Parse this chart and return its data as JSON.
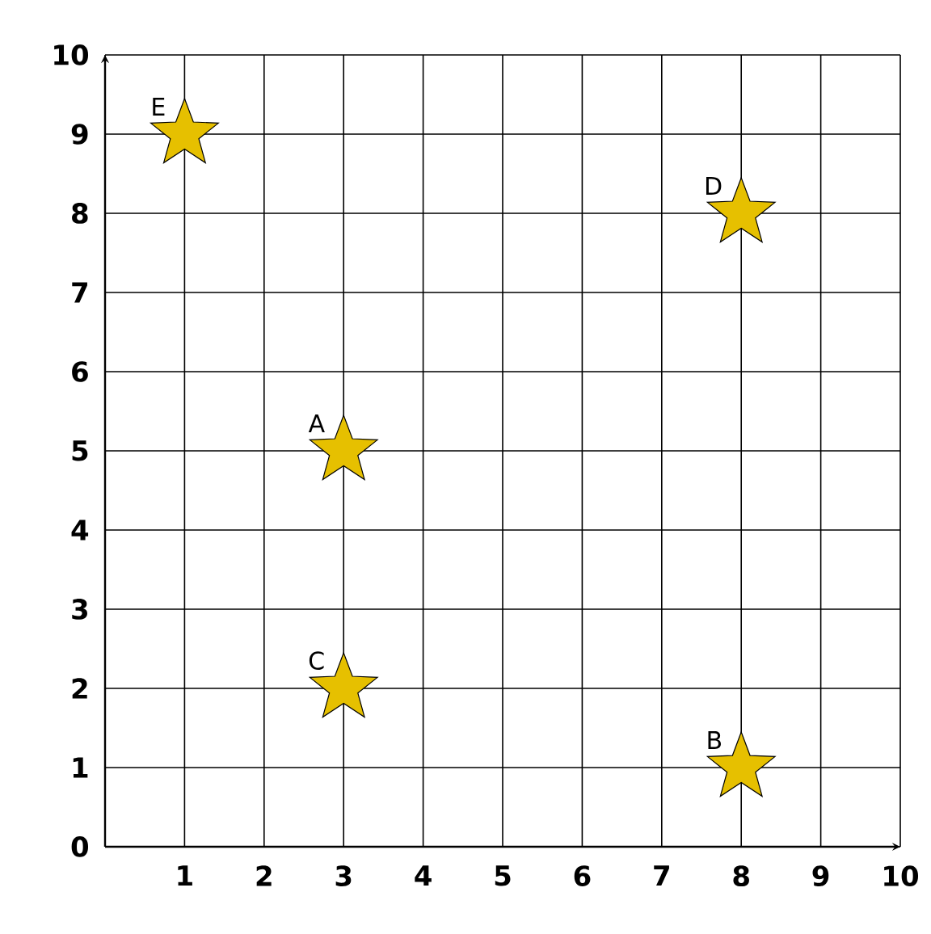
{
  "chart_data": {
    "type": "scatter",
    "marker": "star",
    "grid": true,
    "series": [
      {
        "color": "#e6c000",
        "x": [
          3,
          8,
          3,
          8,
          1
        ],
        "values": [
          5,
          1,
          2,
          8,
          9
        ]
      }
    ],
    "annotations": [
      {
        "text": "A",
        "x": 3,
        "y": 5
      },
      {
        "text": "B",
        "x": 8,
        "y": 1
      },
      {
        "text": "C",
        "x": 3,
        "y": 2
      },
      {
        "text": "D",
        "x": 8,
        "y": 8
      },
      {
        "text": "E",
        "x": 1,
        "y": 9
      }
    ],
    "xlim": [
      0,
      10
    ],
    "ylim": [
      0,
      10
    ],
    "xticks": [
      {
        "value": 0,
        "label": null
      },
      1,
      2,
      3,
      4,
      5,
      6,
      7,
      8,
      9,
      10
    ],
    "yticks": [
      0,
      1,
      2,
      3,
      4,
      5,
      6,
      7,
      8,
      9,
      10
    ]
  }
}
